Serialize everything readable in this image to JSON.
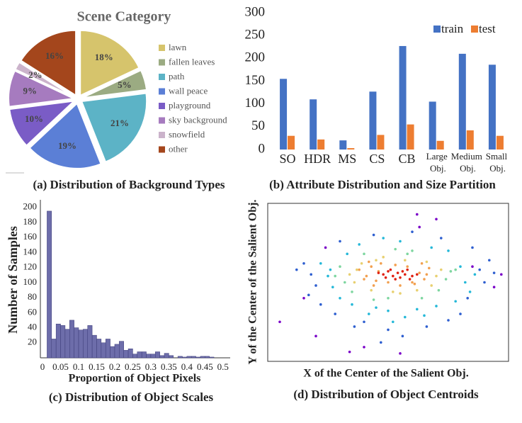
{
  "chart_data": [
    {
      "type": "pie",
      "title": "Scene Category",
      "caption": "(a) Distribution of Background Types",
      "categories": [
        "lawn",
        "fallen leaves",
        "path",
        "wall peace",
        "playground",
        "sky background",
        "snowfield",
        "other"
      ],
      "values": [
        18,
        5,
        21,
        19,
        10,
        9,
        2,
        16
      ],
      "value_labels": [
        "18%",
        "5%",
        "21%",
        "19%",
        "10%",
        "9%",
        "2%",
        "16%"
      ],
      "colors": [
        "#d6c46c",
        "#9bab82",
        "#5cb3c6",
        "#5b7fd6",
        "#7a5cc6",
        "#a67bbf",
        "#cbb3cb",
        "#a4461c"
      ],
      "legend": "right"
    },
    {
      "type": "bar",
      "caption": "(b) Attribute Distribution and Size Partition",
      "categories": [
        "SO",
        "HDR",
        "MS",
        "CS",
        "CB",
        "Large Obj.",
        "Medium Obj.",
        "Small Obj."
      ],
      "series": [
        {
          "name": "train",
          "color": "#4472c4",
          "values": [
            155,
            110,
            20,
            127,
            227,
            105,
            210,
            186
          ]
        },
        {
          "name": "test",
          "color": "#ed7d31",
          "values": [
            30,
            22,
            3,
            32,
            55,
            19,
            42,
            30
          ]
        }
      ],
      "ylim": [
        0,
        300
      ],
      "yticks": [
        0,
        50,
        100,
        150,
        200,
        250,
        300
      ],
      "legend": "top-right"
    },
    {
      "type": "histogram",
      "caption": "(c) Distribution of Object Scales",
      "xlabel": "Proportion of Object Pixels",
      "ylabel": "Number of Samples",
      "color": "#6d6daa",
      "bins": [
        0,
        0.0125,
        0.025,
        0.0375,
        0.05,
        0.0625,
        0.075,
        0.0875,
        0.1,
        0.1125,
        0.125,
        0.1375,
        0.15,
        0.1625,
        0.175,
        0.1875,
        0.2,
        0.2125,
        0.225,
        0.2375,
        0.25,
        0.2625,
        0.275,
        0.2875,
        0.3,
        0.3125,
        0.325,
        0.3375,
        0.35,
        0.3625,
        0.375,
        0.3875,
        0.4,
        0.4125,
        0.425,
        0.4375,
        0.45,
        0.4625,
        0.475,
        0.4875,
        0.5
      ],
      "counts": [
        0,
        195,
        25,
        45,
        43,
        38,
        50,
        40,
        37,
        38,
        43,
        30,
        25,
        20,
        25,
        15,
        18,
        22,
        10,
        12,
        5,
        8,
        8,
        5,
        5,
        8,
        3,
        6,
        3,
        0,
        2,
        1,
        2,
        2,
        1,
        2,
        2,
        1,
        0,
        0
      ],
      "xlim": [
        -0.006,
        0.52
      ],
      "xticks": [
        0,
        0.05,
        0.1,
        0.15,
        0.2,
        0.25,
        0.3,
        0.35,
        0.4,
        0.45,
        0.5
      ],
      "ylim": [
        0,
        210
      ],
      "yticks": [
        20,
        40,
        60,
        80,
        100,
        120,
        140,
        160,
        180,
        200
      ]
    },
    {
      "type": "scatter",
      "caption": "(d) Distribution of Object Centroids",
      "xlabel": "X of the Center of the Salient Obj.",
      "ylabel": "Y of the Center of the Salient Obj.",
      "xlim": [
        0,
        100
      ],
      "ylim": [
        0,
        100
      ],
      "series": [
        {
          "color": "#7a00c8",
          "x": [
            5,
            15,
            34,
            40,
            24,
            70,
            85,
            97,
            62,
            63,
            55,
            20,
            94
          ],
          "y": [
            25,
            40,
            6,
            9,
            72,
            90,
            60,
            55,
            93,
            85,
            5,
            16,
            47
          ]
        },
        {
          "color": "#2e5fd0",
          "x": [
            15,
            18,
            20,
            12,
            88,
            90,
            92,
            85,
            22,
            28,
            80,
            75,
            36,
            44,
            60,
            66,
            50,
            56,
            40,
            72,
            17,
            94,
            30,
            83,
            47
          ],
          "y": [
            62,
            55,
            48,
            58,
            58,
            50,
            64,
            72,
            36,
            30,
            30,
            26,
            22,
            80,
            82,
            22,
            20,
            16,
            25,
            78,
            42,
            56,
            76,
            40,
            12
          ]
        },
        {
          "color": "#25b8d8",
          "x": [
            22,
            25,
            27,
            80,
            82,
            84,
            30,
            33,
            75,
            78,
            45,
            50,
            55,
            62,
            38,
            42,
            68,
            70,
            26,
            86,
            48,
            57,
            35,
            65,
            52
          ],
          "y": [
            62,
            54,
            47,
            60,
            50,
            44,
            40,
            68,
            70,
            38,
            34,
            32,
            76,
            33,
            74,
            30,
            72,
            35,
            58,
            55,
            78,
            28,
            36,
            29,
            25
          ]
        },
        {
          "color": "#7ed6a0",
          "x": [
            30,
            32,
            74,
            76,
            35,
            71,
            50,
            58,
            40,
            64,
            28,
            78,
            44,
            60,
            53
          ],
          "y": [
            60,
            50,
            52,
            57,
            44,
            45,
            40,
            68,
            68,
            40,
            54,
            58,
            39,
            70,
            71
          ]
        },
        {
          "color": "#e8d070",
          "x": [
            34,
            36,
            39,
            70,
            72,
            68,
            43,
            52,
            57,
            62,
            48,
            37,
            66,
            55,
            45
          ],
          "y": [
            55,
            50,
            62,
            54,
            58,
            48,
            45,
            44,
            64,
            45,
            66,
            58,
            63,
            43,
            64
          ]
        },
        {
          "color": "#f2a050",
          "x": [
            38,
            41,
            43,
            45,
            47,
            63,
            65,
            67,
            44,
            50,
            53,
            58,
            61,
            40,
            66,
            46,
            55,
            60,
            42,
            64
          ],
          "y": [
            58,
            54,
            60,
            51,
            62,
            56,
            52,
            59,
            48,
            50,
            61,
            60,
            49,
            52,
            55,
            57,
            48,
            50,
            63,
            62
          ]
        },
        {
          "color": "#e02010",
          "x": [
            48,
            50,
            52,
            54,
            55,
            57,
            58,
            60,
            53,
            51,
            56,
            59,
            49,
            62,
            46
          ],
          "y": [
            55,
            57,
            54,
            56,
            53,
            55,
            58,
            54,
            52,
            58,
            57,
            52,
            53,
            55,
            56
          ]
        }
      ]
    }
  ]
}
